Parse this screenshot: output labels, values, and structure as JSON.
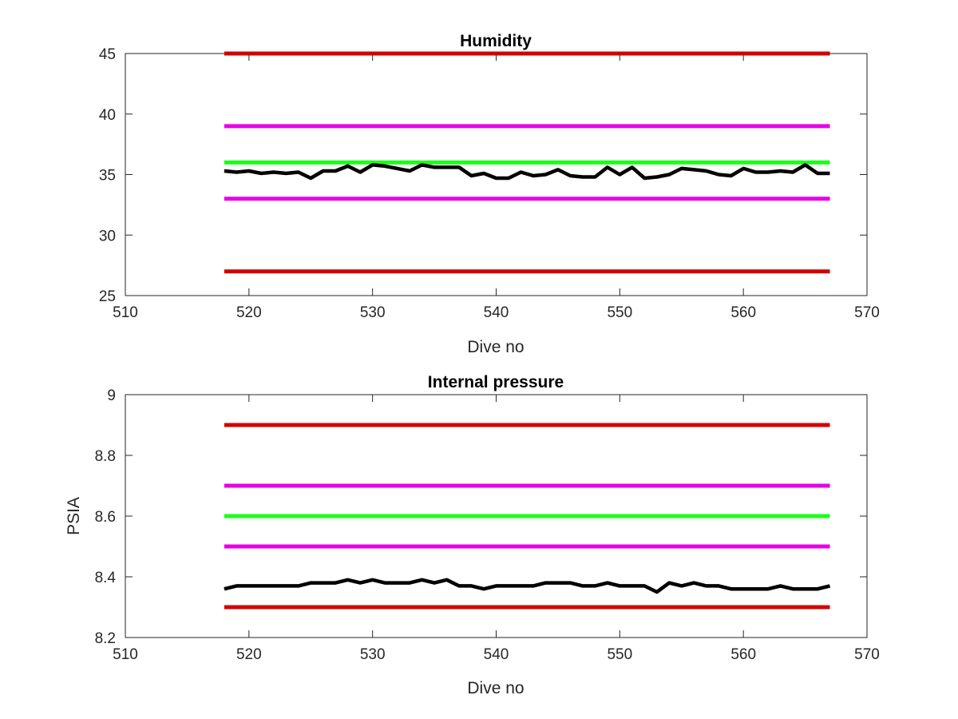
{
  "chart_data": [
    {
      "type": "line",
      "title": "Humidity",
      "xlabel": "Dive no",
      "ylabel": "",
      "xlim": [
        510,
        570
      ],
      "ylim": [
        25,
        45
      ],
      "xticks": [
        510,
        520,
        530,
        540,
        550,
        560,
        570
      ],
      "yticks": [
        25,
        30,
        35,
        40,
        45
      ],
      "grid": false,
      "thresholds": [
        {
          "y": 45,
          "x": [
            518,
            567
          ],
          "color": "#d40000"
        },
        {
          "y": 39,
          "x": [
            518,
            567
          ],
          "color": "#e600e6"
        },
        {
          "y": 36,
          "x": [
            518,
            567
          ],
          "color": "#1aff1a"
        },
        {
          "y": 33,
          "x": [
            518,
            567
          ],
          "color": "#e600e6"
        },
        {
          "y": 27,
          "x": [
            518,
            567
          ],
          "color": "#d40000"
        }
      ],
      "series": [
        {
          "color": "#000000",
          "x": [
            518,
            519,
            520,
            521,
            522,
            523,
            524,
            525,
            526,
            527,
            528,
            529,
            530,
            531,
            532,
            533,
            534,
            535,
            536,
            537,
            538,
            539,
            540,
            541,
            542,
            543,
            544,
            545,
            546,
            547,
            548,
            549,
            550,
            551,
            552,
            553,
            554,
            555,
            556,
            557,
            558,
            559,
            560,
            561,
            562,
            563,
            564,
            565,
            566,
            567
          ],
          "values": [
            35.3,
            35.2,
            35.3,
            35.1,
            35.2,
            35.1,
            35.2,
            34.7,
            35.3,
            35.3,
            35.7,
            35.2,
            35.8,
            35.7,
            35.5,
            35.3,
            35.8,
            35.6,
            35.6,
            35.6,
            34.9,
            35.1,
            34.7,
            34.7,
            35.2,
            34.9,
            35.0,
            35.4,
            34.9,
            34.8,
            34.8,
            35.6,
            35.0,
            35.6,
            34.7,
            34.8,
            35.0,
            35.5,
            35.4,
            35.3,
            35.0,
            34.9,
            35.5,
            35.2,
            35.2,
            35.3,
            35.2,
            35.8,
            35.1,
            35.1
          ]
        }
      ]
    },
    {
      "type": "line",
      "title": "Internal pressure",
      "xlabel": "Dive no",
      "ylabel": "PSIA",
      "xlim": [
        510,
        570
      ],
      "ylim": [
        8.2,
        9.0
      ],
      "xticks": [
        510,
        520,
        530,
        540,
        550,
        560,
        570
      ],
      "yticks": [
        "8.2",
        "8.4",
        "8.6",
        "8.8",
        "9"
      ],
      "grid": false,
      "thresholds": [
        {
          "y": 8.9,
          "x": [
            518,
            567
          ],
          "color": "#d40000"
        },
        {
          "y": 8.7,
          "x": [
            518,
            567
          ],
          "color": "#e600e6"
        },
        {
          "y": 8.6,
          "x": [
            518,
            567
          ],
          "color": "#1aff1a"
        },
        {
          "y": 8.5,
          "x": [
            518,
            567
          ],
          "color": "#e600e6"
        },
        {
          "y": 8.3,
          "x": [
            518,
            567
          ],
          "color": "#d40000"
        }
      ],
      "series": [
        {
          "color": "#000000",
          "x": [
            518,
            519,
            520,
            521,
            522,
            523,
            524,
            525,
            526,
            527,
            528,
            529,
            530,
            531,
            532,
            533,
            534,
            535,
            536,
            537,
            538,
            539,
            540,
            541,
            542,
            543,
            544,
            545,
            546,
            547,
            548,
            549,
            550,
            551,
            552,
            553,
            554,
            555,
            556,
            557,
            558,
            559,
            560,
            561,
            562,
            563,
            564,
            565,
            566,
            567
          ],
          "values": [
            8.36,
            8.37,
            8.37,
            8.37,
            8.37,
            8.37,
            8.37,
            8.38,
            8.38,
            8.38,
            8.39,
            8.38,
            8.39,
            8.38,
            8.38,
            8.38,
            8.39,
            8.38,
            8.39,
            8.37,
            8.37,
            8.36,
            8.37,
            8.37,
            8.37,
            8.37,
            8.38,
            8.38,
            8.38,
            8.37,
            8.37,
            8.38,
            8.37,
            8.37,
            8.37,
            8.35,
            8.38,
            8.37,
            8.38,
            8.37,
            8.37,
            8.36,
            8.36,
            8.36,
            8.36,
            8.37,
            8.36,
            8.36,
            8.36,
            8.37
          ]
        }
      ]
    }
  ]
}
